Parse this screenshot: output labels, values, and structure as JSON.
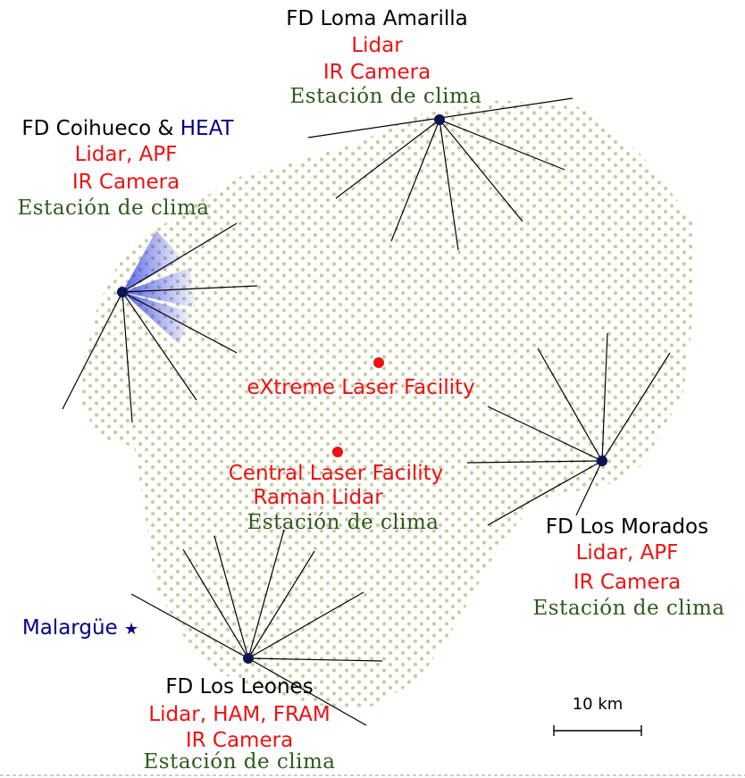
{
  "colors": {
    "array_dot": "#c8cc9e",
    "fd_site": "#0a1450",
    "laser_facility": "#ee1111",
    "instrument_text": "#ee1111",
    "weather_text": "#2e5a1c",
    "heat_text": "#000088",
    "heat_fov": "#2233dd",
    "town": "#000088"
  },
  "sites": {
    "loma_amarilla": {
      "name": "FD Loma Amarilla",
      "instruments": [
        "Lidar",
        "IR Camera"
      ],
      "weather": "Estación de clima"
    },
    "coihueco": {
      "name": "FD Coihueco &",
      "name_extra": "HEAT",
      "instruments": [
        "Lidar, APF",
        "IR Camera"
      ],
      "weather": "Estación de clima"
    },
    "los_morados": {
      "name": "FD Los Morados",
      "instruments": [
        "Lidar, APF",
        "IR Camera"
      ],
      "weather": "Estación de clima"
    },
    "los_leones": {
      "name": "FD Los Leones",
      "instruments": [
        "Lidar, HAM, FRAM",
        "IR Camera"
      ],
      "weather": "Estación de clima"
    }
  },
  "facilities": {
    "xlf": {
      "name": "eXtreme Laser Facility"
    },
    "clf": {
      "name": "Central Laser Facility",
      "extra": "Raman Lidar",
      "weather": "Estación de clima"
    }
  },
  "town": {
    "name": "Malargüe",
    "icon": "star-icon"
  },
  "scale_bar": {
    "label": "10 km"
  }
}
